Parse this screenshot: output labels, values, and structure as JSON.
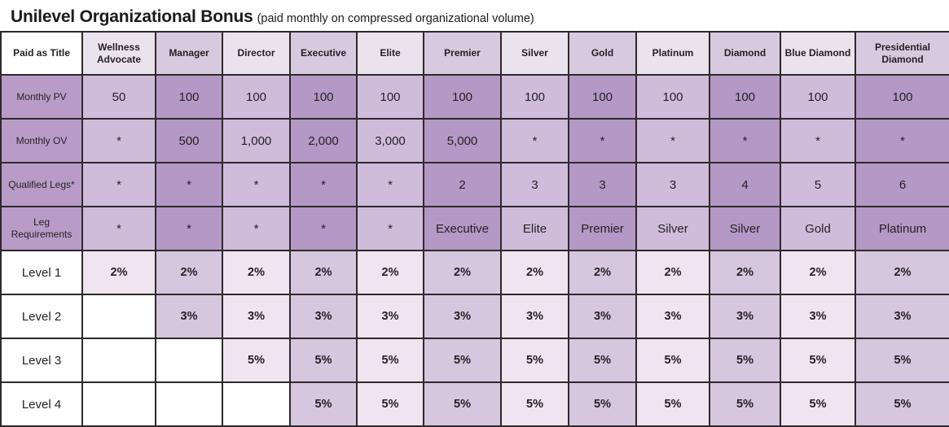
{
  "title": {
    "main": "Unilevel Organizational Bonus",
    "subtitle": "(paid monthly on compressed organizational volume)"
  },
  "colors": {
    "header_light": "#eae2ec",
    "header_dark": "#d7c9de",
    "label_purple": "#b89cc7",
    "data_light": "#cfbcda",
    "data_dark": "#b498c5",
    "level_light": "#efe4f0",
    "level_dark": "#d6c6de",
    "border": "#2e292b"
  },
  "table": {
    "corner_label": "Paid as Title",
    "header": [
      "Paid as Title",
      "Wellness Advocate",
      "Manager",
      "Director",
      "Executive",
      "Elite",
      "Premier",
      "Silver",
      "Gold",
      "Platinum",
      "Diamond",
      "Blue Diamond",
      "Presidential Diamond"
    ],
    "rows": [
      {
        "label": "Monthly PV",
        "type": "purple",
        "cells": [
          "50",
          "100",
          "100",
          "100",
          "100",
          "100",
          "100",
          "100",
          "100",
          "100",
          "100",
          "100"
        ]
      },
      {
        "label": "Monthly OV",
        "type": "purple",
        "cells": [
          "*",
          "500",
          "1,000",
          "2,000",
          "3,000",
          "5,000",
          "*",
          "*",
          "*",
          "*",
          "*",
          "*"
        ]
      },
      {
        "label": "Qualified Legs*",
        "type": "purple",
        "cells": [
          "*",
          "*",
          "*",
          "*",
          "*",
          "2",
          "3",
          "3",
          "3",
          "4",
          "5",
          "6"
        ]
      },
      {
        "label": "Leg Requirements",
        "type": "purple",
        "cells": [
          "*",
          "*",
          "*",
          "*",
          "*",
          "Executive",
          "Elite",
          "Premier",
          "Silver",
          "Silver",
          "Gold",
          "Platinum"
        ]
      },
      {
        "label": "Level 1",
        "type": "level",
        "cells": [
          "2%",
          "2%",
          "2%",
          "2%",
          "2%",
          "2%",
          "2%",
          "2%",
          "2%",
          "2%",
          "2%",
          "2%"
        ]
      },
      {
        "label": "Level 2",
        "type": "level",
        "cells": [
          "",
          "3%",
          "3%",
          "3%",
          "3%",
          "3%",
          "3%",
          "3%",
          "3%",
          "3%",
          "3%",
          "3%"
        ]
      },
      {
        "label": "Level 3",
        "type": "level",
        "cells": [
          "",
          "",
          "5%",
          "5%",
          "5%",
          "5%",
          "5%",
          "5%",
          "5%",
          "5%",
          "5%",
          "5%"
        ]
      },
      {
        "label": "Level 4",
        "type": "level",
        "cells": [
          "",
          "",
          "",
          "5%",
          "5%",
          "5%",
          "5%",
          "5%",
          "5%",
          "5%",
          "5%",
          "5%"
        ]
      }
    ]
  }
}
